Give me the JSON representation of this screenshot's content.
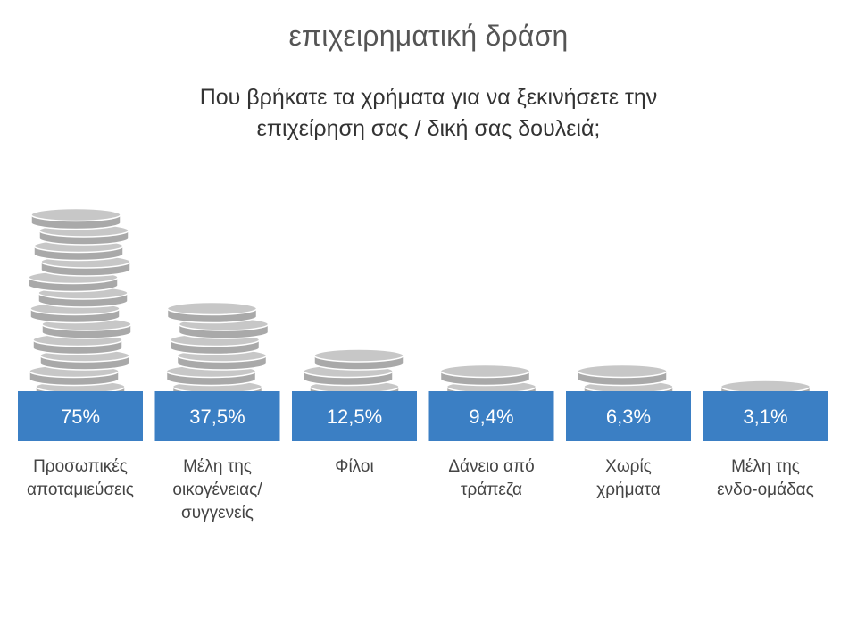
{
  "header": {
    "title": "επιχειρηματική δράση",
    "question_lines": [
      "Που βρήκατε τα χρήματα για να ξεκινήσετε την",
      "επιχείρηση σας / δική σας δουλειά;"
    ]
  },
  "colors": {
    "bar": "#3b7fc4",
    "coin_face": "#c7c7c7",
    "coin_edge": "#a9a9a9",
    "coin_outline": "#ffffff",
    "value_text": "#ffffff"
  },
  "chart_data": {
    "type": "bar",
    "title": "",
    "categories": [
      "Προσωπικές αποταμιεύσεις",
      "Μέλη της οικογένειας/ συγγενείς",
      "Φίλοι",
      "Δάνειο από τράπεζα",
      "Χωρίς χρήματα",
      "Μέλη της ενδο-ομάδας"
    ],
    "category_lines": [
      [
        "Προσωπικές",
        "αποταμιεύσεις"
      ],
      [
        "Μέλη της",
        "οικογένειας/",
        "συγγενείς"
      ],
      [
        "Φίλοι"
      ],
      [
        "Δάνειο από",
        "τράπεζα"
      ],
      [
        "Χωρίς",
        "χρήματα"
      ],
      [
        "Μέλη της",
        "ενδο-ομάδας"
      ]
    ],
    "values": [
      75,
      37.5,
      12.5,
      9.4,
      6.3,
      3.1
    ],
    "value_labels": [
      "75%",
      "37,5%",
      "12,5%",
      "9,4%",
      "6,3%",
      "3,1%"
    ],
    "coin_counts": [
      12,
      6,
      3,
      2,
      2,
      1
    ],
    "unit": "%",
    "grid": false,
    "legend": "none"
  }
}
